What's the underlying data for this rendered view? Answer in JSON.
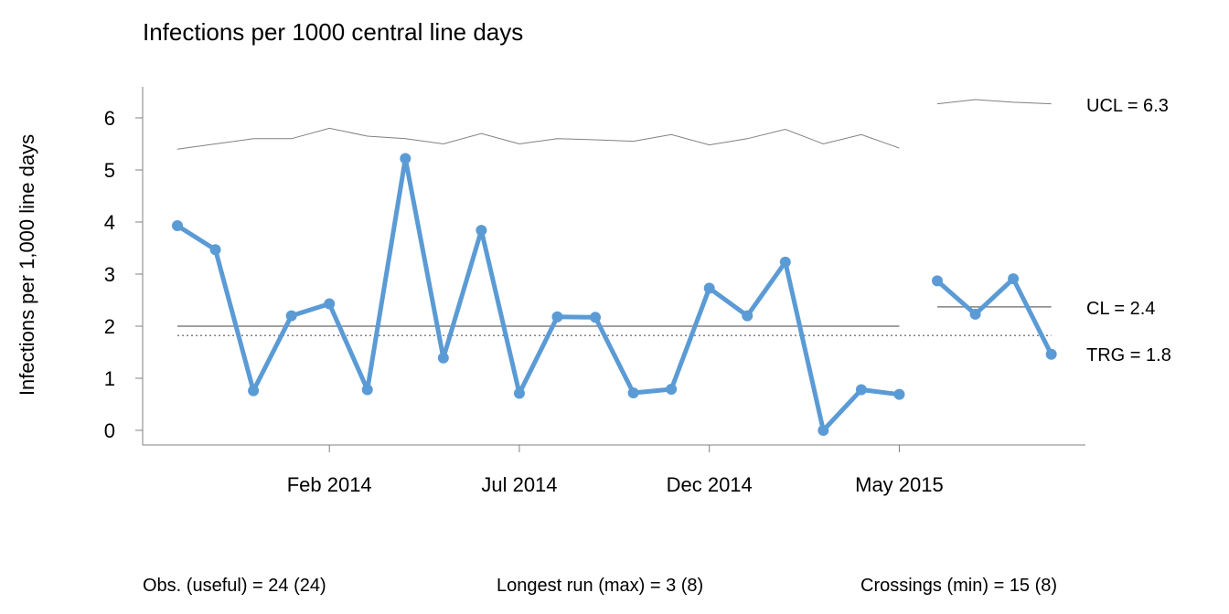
{
  "chart_data": {
    "type": "line",
    "title": "Infections per 1000 central line days",
    "ylabel": "Infections per 1,000 line days",
    "xlabel": "",
    "ylim": [
      -0.3,
      6.6
    ],
    "yticks": [
      0,
      1,
      2,
      3,
      4,
      5,
      6
    ],
    "xticks": [
      {
        "label": "Feb 2014",
        "index": 4
      },
      {
        "label": "Jul 2014",
        "index": 9
      },
      {
        "label": "Dec 2014",
        "index": 14
      },
      {
        "label": "May 2015",
        "index": 19
      }
    ],
    "grid": false,
    "periods": [
      {
        "values": [
          3.93,
          3.47,
          0.76,
          2.2,
          2.43,
          0.78,
          5.22,
          1.39,
          3.84,
          0.71,
          2.18,
          2.17,
          0.72,
          0.79,
          2.73,
          2.2,
          3.23,
          0.0,
          0.78,
          0.69
        ],
        "ucl": [
          5.4,
          5.5,
          5.6,
          5.6,
          5.8,
          5.65,
          5.6,
          5.5,
          5.7,
          5.5,
          5.6,
          5.58,
          5.55,
          5.68,
          5.48,
          5.6,
          5.78,
          5.5,
          5.68,
          5.42
        ],
        "cl": 2.0
      },
      {
        "values": [
          2.87,
          2.23,
          2.91,
          1.46
        ],
        "ucl": [
          6.27,
          6.35,
          6.3,
          6.27
        ],
        "cl": 2.37
      }
    ],
    "target": 1.82,
    "series_color": "#5B9BD5",
    "limit_line_color": "#808080",
    "labels": {
      "ucl": "UCL = 6.3",
      "cl": "CL = 2.4",
      "trg": "TRG = 1.8"
    },
    "footer": {
      "obs": "Obs. (useful) = 24 (24)",
      "run": "Longest run (max) = 3 (8)",
      "crossings": "Crossings (min) = 15 (8)"
    }
  }
}
